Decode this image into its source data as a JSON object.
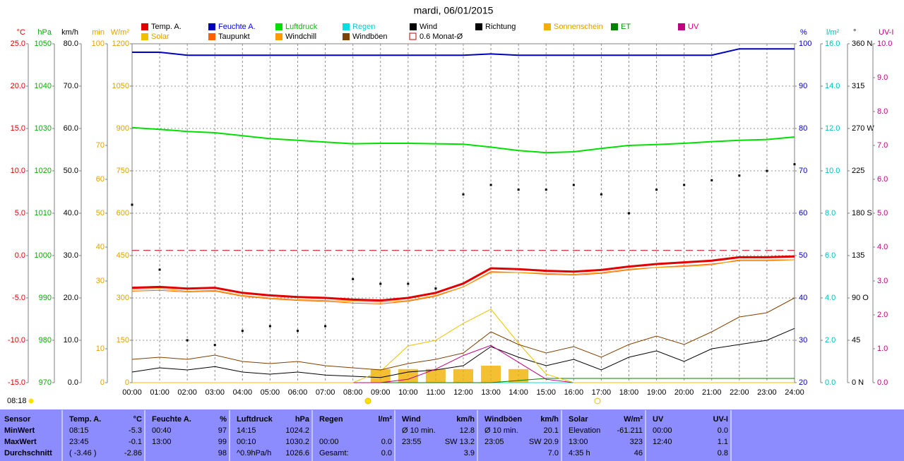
{
  "chart_data": {
    "type": "line",
    "title": "mardi, 06/01/2015",
    "x": [
      0,
      1,
      2,
      3,
      4,
      5,
      6,
      7,
      8,
      9,
      10,
      11,
      12,
      13,
      14,
      15,
      16,
      17,
      18,
      19,
      20,
      21,
      22,
      23,
      24
    ],
    "xlim": [
      0,
      24
    ],
    "xticks": [
      {
        "value": 0,
        "label": "00:00"
      },
      {
        "value": 1,
        "label": "01:00"
      },
      {
        "value": 2,
        "label": "02:00"
      },
      {
        "value": 3,
        "label": "03:00"
      },
      {
        "value": 4,
        "label": "04:00"
      },
      {
        "value": 5,
        "label": "05:00"
      },
      {
        "value": 6,
        "label": "06:00"
      },
      {
        "value": 7,
        "label": "07:00"
      },
      {
        "value": 8,
        "label": "08:00"
      },
      {
        "value": 9,
        "label": "09:00"
      },
      {
        "value": 10,
        "label": "10:00"
      },
      {
        "value": 11,
        "label": "11:00"
      },
      {
        "value": 12,
        "label": "12:00"
      },
      {
        "value": 13,
        "label": "13:00"
      },
      {
        "value": 14,
        "label": "14:00"
      },
      {
        "value": 15,
        "label": "15:00"
      },
      {
        "value": 16,
        "label": "16:00"
      },
      {
        "value": 17,
        "label": "17:00"
      },
      {
        "value": 18,
        "label": "18:00"
      },
      {
        "value": 19,
        "label": "19:00"
      },
      {
        "value": 20,
        "label": "20:00"
      },
      {
        "value": 21,
        "label": "21:00"
      },
      {
        "value": 22,
        "label": "22:00"
      },
      {
        "value": 23,
        "label": "23:00"
      },
      {
        "value": 24,
        "label": "24:00"
      }
    ],
    "grid": true,
    "axes": [
      {
        "label": "°C",
        "color": "#e00000",
        "side": "left",
        "lim": [
          -15,
          25
        ],
        "ticks": [
          {
            "value": -15,
            "label": "-15.0"
          },
          {
            "value": -10,
            "label": "-10.0"
          },
          {
            "value": -5,
            "label": "-5.0"
          },
          {
            "value": 0,
            "label": "0.0"
          },
          {
            "value": 5,
            "label": "5.0"
          },
          {
            "value": 10,
            "label": "10.0"
          },
          {
            "value": 15,
            "label": "15.0"
          },
          {
            "value": 20,
            "label": "20.0"
          },
          {
            "value": 25,
            "label": "25.0"
          }
        ]
      },
      {
        "label": "hPa",
        "color": "#00b000",
        "side": "left",
        "lim": [
          970,
          1050
        ],
        "ticks": [
          970,
          980,
          990,
          1000,
          1010,
          1020,
          1030,
          1040,
          1050
        ]
      },
      {
        "label": "km/h",
        "color": "#000000",
        "side": "left",
        "lim": [
          0,
          80
        ],
        "ticks": [
          {
            "value": 0,
            "label": "0.0"
          },
          {
            "value": 10,
            "label": "10.0"
          },
          {
            "value": 20,
            "label": "20.0"
          },
          {
            "value": 30,
            "label": "30.0"
          },
          {
            "value": 40,
            "label": "40.0"
          },
          {
            "value": 50,
            "label": "50.0"
          },
          {
            "value": 60,
            "label": "60.0"
          },
          {
            "value": 70,
            "label": "70.0"
          },
          {
            "value": 80,
            "label": "80.0"
          }
        ]
      },
      {
        "label": "min",
        "color": "#e0a000",
        "side": "left",
        "lim": [
          0,
          100
        ],
        "ticks": [
          0,
          10,
          30,
          40,
          50,
          60,
          70,
          100
        ]
      },
      {
        "label": "W/m²",
        "color": "#e0a000",
        "side": "left",
        "lim": [
          0,
          1200
        ],
        "ticks": [
          0,
          150,
          300,
          450,
          600,
          750,
          900,
          1050,
          1200
        ]
      },
      {
        "label": "%",
        "color": "#0000c0",
        "side": "right",
        "lim": [
          20,
          100
        ],
        "ticks": [
          20,
          30,
          40,
          50,
          60,
          70,
          80,
          90,
          100
        ]
      },
      {
        "label": "l/m²",
        "color": "#00c0c0",
        "side": "right",
        "lim": [
          0,
          16
        ],
        "ticks": [
          {
            "value": 0,
            "label": "0.0"
          },
          {
            "value": 2,
            "label": "2.0"
          },
          {
            "value": 4,
            "label": "4.0"
          },
          {
            "value": 6,
            "label": "6.0"
          },
          {
            "value": 8,
            "label": "8.0"
          },
          {
            "value": 10,
            "label": "10.0"
          },
          {
            "value": 12,
            "label": "12.0"
          },
          {
            "value": 14,
            "label": "14.0"
          },
          {
            "value": 16,
            "label": "16.0"
          }
        ]
      },
      {
        "label": "°",
        "color": "#000000",
        "side": "right",
        "lim": [
          0,
          360
        ],
        "ticks": [
          {
            "value": 0,
            "label": "0 N"
          },
          45,
          {
            "value": 90,
            "label": "90 O"
          },
          135,
          {
            "value": 180,
            "label": "180 S"
          },
          225,
          {
            "value": 270,
            "label": "270 W"
          },
          315,
          {
            "value": 360,
            "label": "360 N"
          }
        ]
      },
      {
        "label": "UV-I",
        "color": "#c0007f",
        "side": "right",
        "lim": [
          0,
          10
        ],
        "ticks": [
          {
            "value": 0,
            "label": "0.0"
          },
          {
            "value": 1,
            "label": "1.0"
          },
          {
            "value": 2,
            "label": "2.0"
          },
          {
            "value": 3,
            "label": "3.0"
          },
          {
            "value": 4,
            "label": "4.0"
          },
          {
            "value": 5,
            "label": "5.0"
          },
          {
            "value": 6,
            "label": "6.0"
          },
          {
            "value": 7,
            "label": "7.0"
          },
          {
            "value": 8,
            "label": "8.0"
          },
          {
            "value": 9,
            "label": "9.0"
          },
          {
            "value": 10,
            "label": "10.0"
          }
        ]
      }
    ],
    "series": [
      {
        "name": "Temp. A.",
        "color": "#e00000",
        "label_color": "#000000",
        "axis": 0,
        "style": "line",
        "width": 3,
        "values": [
          -3.8,
          -3.7,
          -3.9,
          -3.8,
          -4.4,
          -4.7,
          -4.9,
          -5.0,
          -5.2,
          -5.3,
          -5.0,
          -4.4,
          -3.3,
          -1.5,
          -1.6,
          -1.8,
          -1.9,
          -1.7,
          -1.3,
          -1.0,
          -0.8,
          -0.6,
          -0.2,
          -0.2,
          -0.1
        ]
      },
      {
        "name": "Feuchte A.",
        "color": "#0000c0",
        "label_color": "#0000ff",
        "axis": 5,
        "style": "line",
        "width": 2,
        "values": [
          98,
          98,
          97.3,
          97.3,
          97.3,
          97.3,
          97.3,
          97.3,
          97.3,
          97.3,
          97.3,
          97.3,
          97.3,
          97.6,
          97.3,
          97.3,
          97.3,
          97.3,
          97.3,
          97.3,
          97.3,
          97.3,
          98.8,
          98.8,
          98.8
        ]
      },
      {
        "name": "Luftdruck",
        "color": "#00e000",
        "label_color": "#00c000",
        "axis": 1,
        "style": "line",
        "width": 2,
        "values": [
          1030.2,
          1029.8,
          1029.3,
          1029.0,
          1028.3,
          1027.6,
          1027.2,
          1026.8,
          1026.4,
          1026.5,
          1026.5,
          1026.4,
          1026.3,
          1025.6,
          1024.8,
          1024.3,
          1024.5,
          1025.3,
          1026.0,
          1026.2,
          1026.5,
          1026.9,
          1027.2,
          1027.4,
          1028.0
        ]
      },
      {
        "name": "Regen",
        "color": "#00e0e0",
        "label_color": "#00d0d0",
        "axis": 6,
        "style": "line",
        "width": 1,
        "values": [
          0,
          0,
          0,
          0,
          0,
          0,
          0,
          0,
          0,
          0,
          0,
          0,
          0,
          0,
          0,
          0,
          0,
          0,
          0,
          0,
          0,
          0,
          0,
          0,
          0
        ]
      },
      {
        "name": "Wind",
        "color": "#000000",
        "label_color": "#000000",
        "axis": 2,
        "style": "line",
        "width": 1,
        "values": [
          2.5,
          3.5,
          3.0,
          3.8,
          2.5,
          2.0,
          2.5,
          1.8,
          1.5,
          1.2,
          2.5,
          3.0,
          4.0,
          8.5,
          6.0,
          4.0,
          5.5,
          3.0,
          6.0,
          7.5,
          5.0,
          8.0,
          9.0,
          10.0,
          12.8
        ]
      },
      {
        "name": "Richtung",
        "color": "#000000",
        "label_color": "#000000",
        "axis": 7,
        "style": "dots",
        "width": 1,
        "values": [
          189,
          120,
          45,
          40,
          55,
          60,
          55,
          60,
          110,
          105,
          105,
          100,
          200,
          210,
          205,
          205,
          210,
          200,
          180,
          205,
          210,
          215,
          220,
          225,
          232
        ]
      },
      {
        "name": "Sonnenschein",
        "color": "#f0b000",
        "label_color": "#e0a000",
        "axis": 3,
        "style": "bars",
        "width": 1,
        "values": [
          0,
          0,
          0,
          0,
          0,
          0,
          0,
          0,
          0,
          4,
          4,
          4,
          4,
          5,
          4,
          0,
          0,
          0,
          0,
          0,
          0,
          0,
          0,
          0,
          0
        ]
      },
      {
        "name": "ET",
        "color": "#008000",
        "label_color": "#00a000",
        "axis": 6,
        "style": "line",
        "width": 1,
        "values": [
          0,
          0,
          0,
          0,
          0,
          0,
          0,
          0,
          0,
          0,
          0,
          0,
          0,
          0,
          0.1,
          0.2,
          0.2,
          0.2,
          0.2,
          0.2,
          0.2,
          0.2,
          0.2,
          0.2,
          0.2
        ]
      },
      {
        "name": "UV",
        "color": "#c0007f",
        "label_color": "#e0007f",
        "axis": 8,
        "style": "line",
        "width": 1,
        "values": [
          0,
          0,
          0,
          0,
          0,
          0,
          0,
          0,
          0,
          0,
          0.1,
          0.4,
          0.8,
          1.1,
          0.6,
          0.1,
          0,
          0,
          0,
          0,
          0,
          0,
          0,
          0,
          0
        ]
      },
      {
        "name": "Solar",
        "color": "#f0c000",
        "label_color": "#e0a000",
        "axis": 4,
        "style": "line",
        "width": 1,
        "values": [
          0,
          0,
          0,
          0,
          0,
          0,
          0,
          0,
          0,
          40,
          130,
          150,
          210,
          260,
          140,
          30,
          0,
          0,
          0,
          0,
          0,
          0,
          0,
          0,
          0
        ]
      },
      {
        "name": "Taupunkt",
        "color": "#ff6000",
        "label_color": "#000000",
        "axis": 0,
        "style": "line",
        "width": 1,
        "values": [
          -4.2,
          -4.1,
          -4.3,
          -4.2,
          -4.8,
          -5.1,
          -5.3,
          -5.4,
          -5.6,
          -5.7,
          -5.4,
          -4.8,
          -3.7,
          -1.9,
          -2.0,
          -2.2,
          -2.3,
          -2.1,
          -1.7,
          -1.4,
          -1.2,
          -1.0,
          -0.6,
          -0.6,
          -0.5
        ]
      },
      {
        "name": "Windchill",
        "color": "#ff9900",
        "label_color": "#000000",
        "axis": 0,
        "style": "line",
        "width": 1,
        "values": [
          -4.0,
          -3.9,
          -4.2,
          -4.1,
          -4.7,
          -5.0,
          -5.2,
          -5.3,
          -5.4,
          -5.5,
          -5.3,
          -4.7,
          -3.7,
          -2.0,
          -2.0,
          -2.1,
          -2.2,
          -2.0,
          -1.6,
          -1.4,
          -1.3,
          -1.1,
          -0.5,
          -0.5,
          -0.5
        ]
      },
      {
        "name": "Windböen",
        "color": "#804000",
        "label_color": "#000000",
        "axis": 2,
        "style": "line",
        "width": 1,
        "values": [
          5.5,
          6.0,
          5.5,
          6.5,
          5.0,
          4.5,
          5.0,
          4.0,
          3.5,
          3.0,
          4.5,
          5.5,
          7.0,
          12.0,
          9.0,
          7.0,
          8.5,
          6.0,
          9.0,
          11.0,
          9.0,
          12.0,
          15.5,
          16.5,
          20.0
        ]
      }
    ],
    "monthly_avg": {
      "label": "0.6 Monat-Ø",
      "value": 0.6,
      "axis": 0,
      "color": "#c00000"
    },
    "sunrise": "08:18",
    "stats": {
      "title": "Sensor",
      "row_labels": [
        "MinWert",
        "MaxWert",
        "Durchschnitt"
      ],
      "sections": [
        {
          "name": "Temp. A.",
          "unit": "°C",
          "rows": [
            [
              "08:15",
              "-5.3"
            ],
            [
              "23:45",
              "-0.1"
            ],
            [
              "( -3.46 )",
              "-2.86"
            ]
          ]
        },
        {
          "name": "Feuchte A.",
          "unit": "%",
          "rows": [
            [
              "00:40",
              "97"
            ],
            [
              "13:00",
              "99"
            ],
            [
              null,
              "98"
            ]
          ]
        },
        {
          "name": "Luftdruck",
          "unit": "hPa",
          "rows": [
            [
              "14:15",
              "1024.2"
            ],
            [
              "00:10",
              "1030.2"
            ],
            [
              "^0.9hPa/h",
              "1026.6"
            ]
          ]
        },
        {
          "name": "Regen",
          "unit": "l/m²",
          "rows": [
            [
              null,
              null
            ],
            [
              "00:00",
              "0.0"
            ],
            [
              "Gesamt:",
              "0.0"
            ]
          ]
        },
        {
          "name": "Wind",
          "unit": "km/h",
          "rows": [
            [
              "Ø 10 min.",
              "12.8"
            ],
            [
              "23:55",
              "SW 13.2"
            ],
            [
              null,
              "3.9"
            ]
          ]
        },
        {
          "name": "Windböen",
          "unit": "km/h",
          "rows": [
            [
              "Ø 10 min.",
              "20.1"
            ],
            [
              "23:05",
              "SW 20.9"
            ],
            [
              null,
              "7.0"
            ]
          ]
        },
        {
          "name": "Solar",
          "unit": "W/m²",
          "rows": [
            [
              "Elevation",
              "-61.211"
            ],
            [
              "13:00",
              "323"
            ],
            [
              "4:35 h",
              "46"
            ]
          ]
        },
        {
          "name": "UV",
          "unit": "UV-I",
          "rows": [
            [
              "00:00",
              "0.0"
            ],
            [
              "12:40",
              "1.1"
            ],
            [
              null,
              "0.8"
            ]
          ]
        }
      ]
    }
  }
}
